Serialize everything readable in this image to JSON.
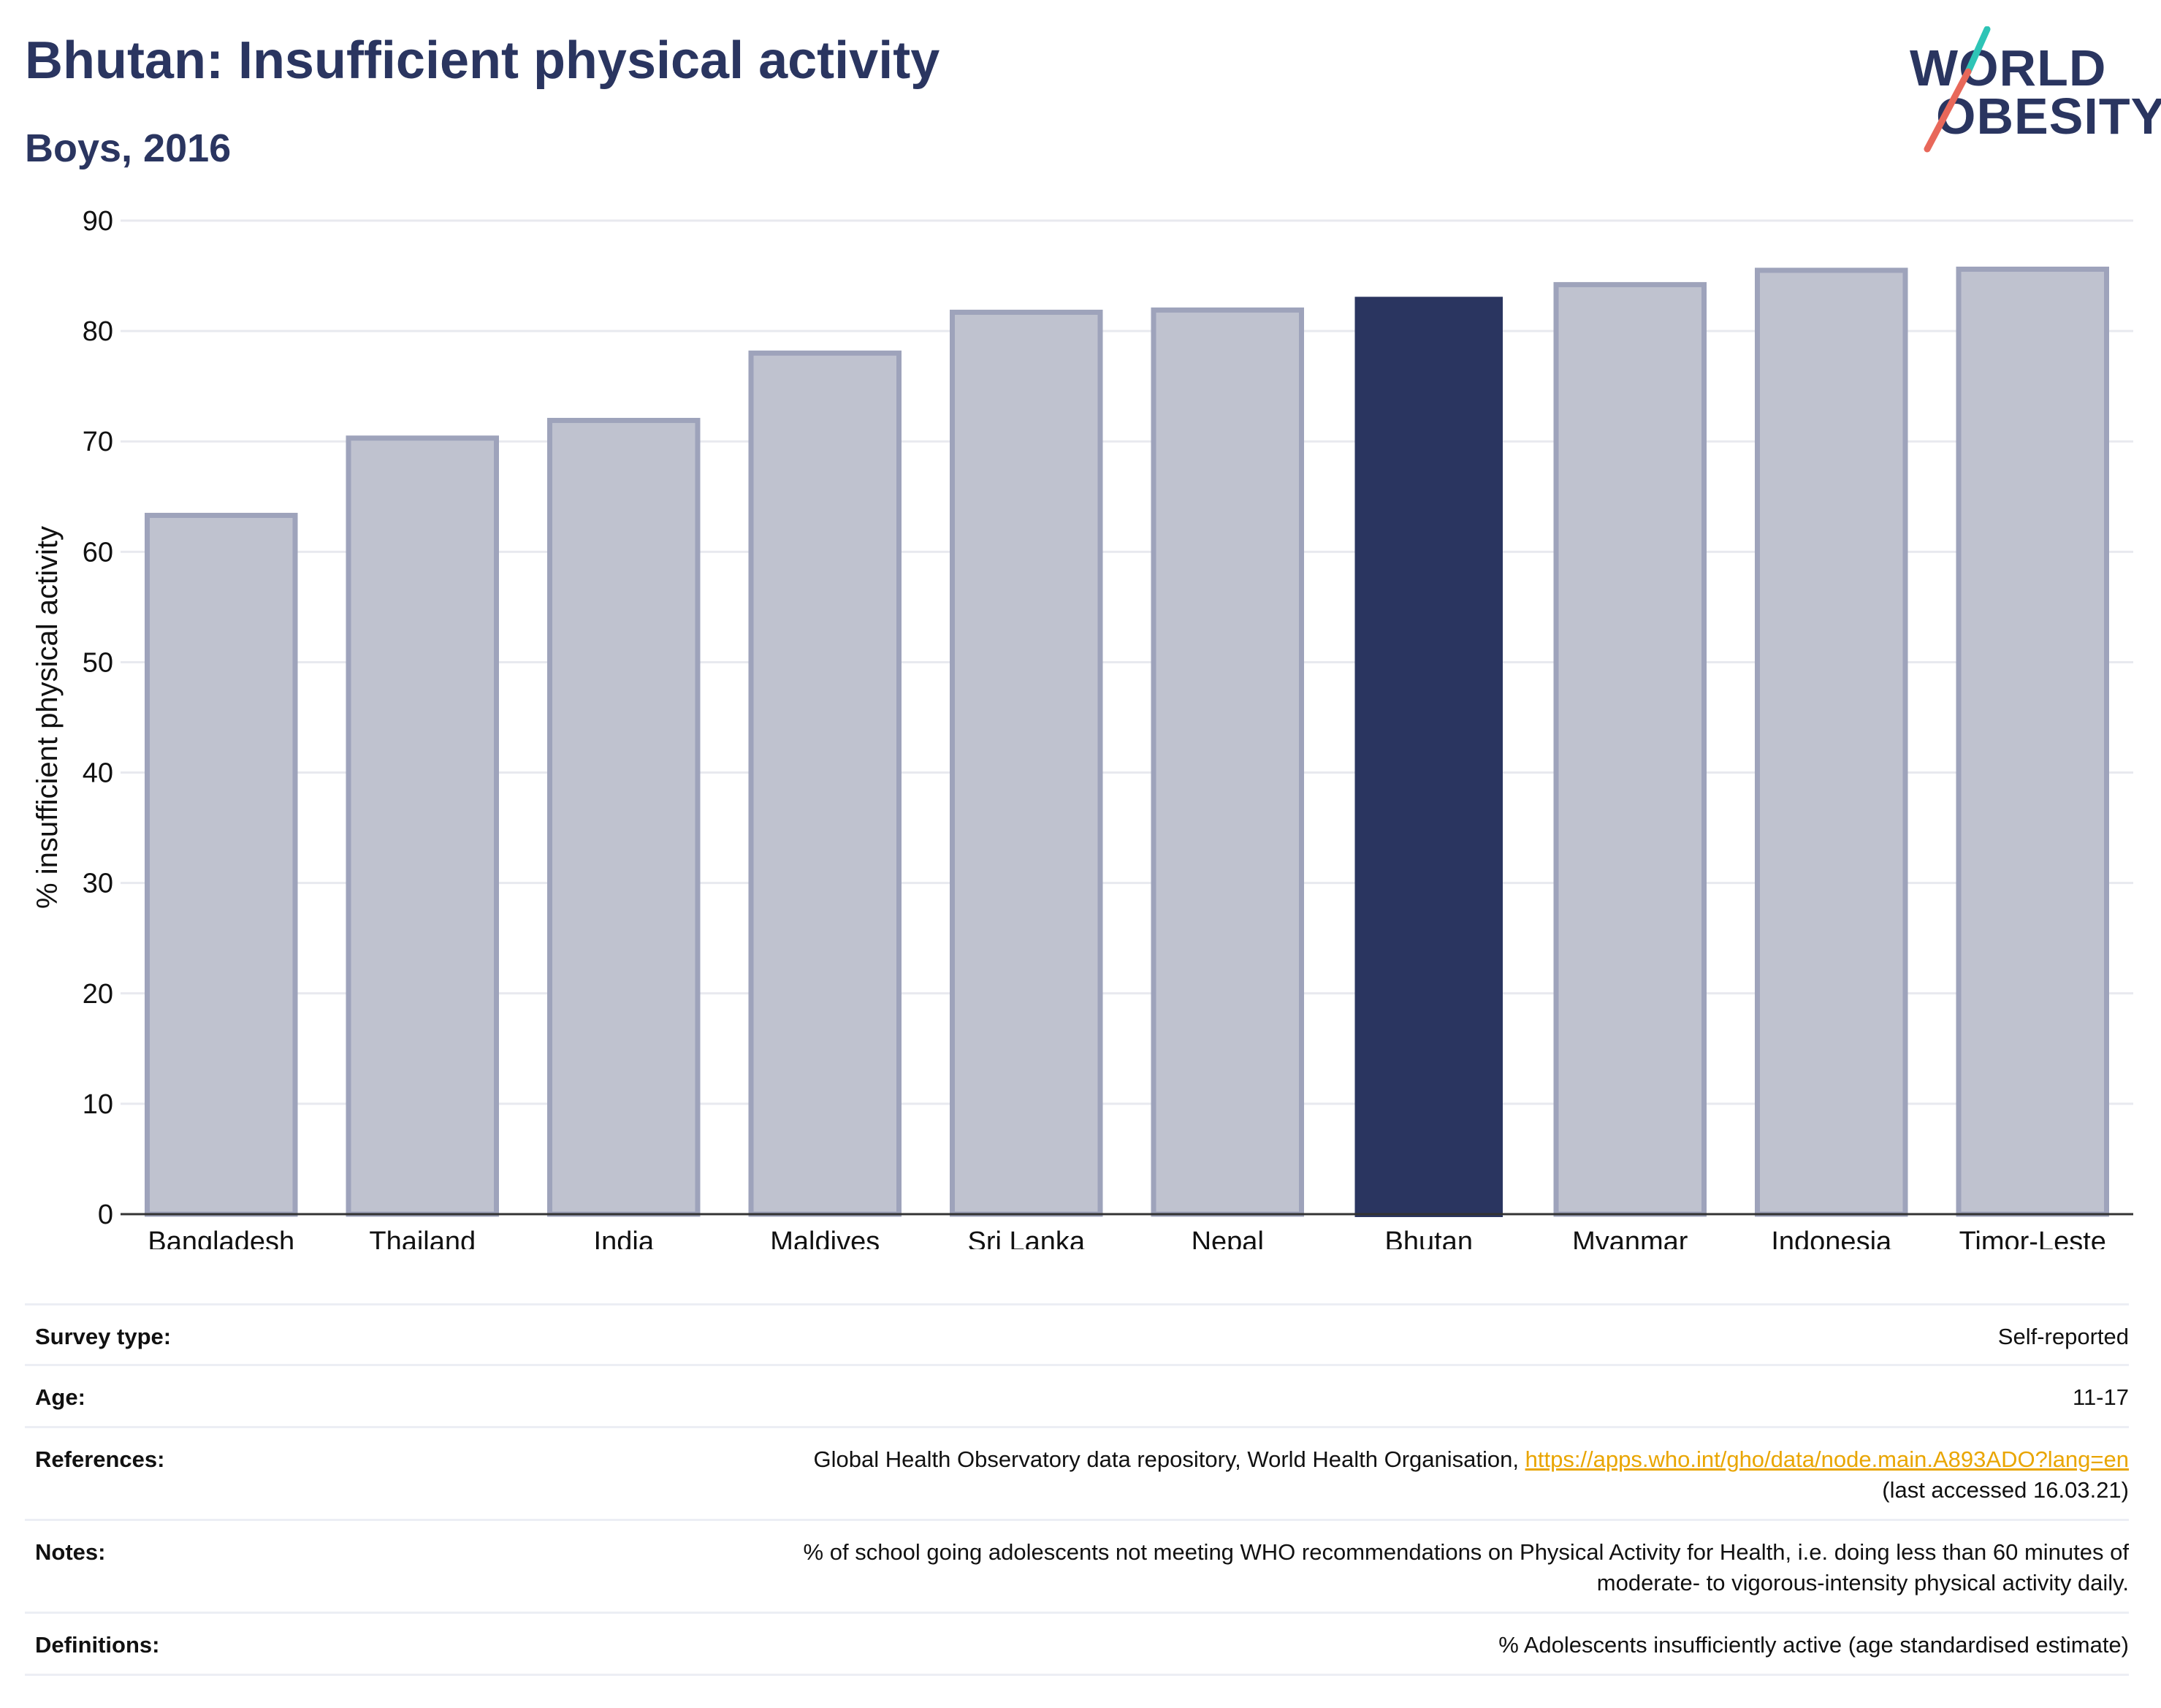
{
  "header": {
    "title": "Bhutan: Insufficient physical activity",
    "subtitle": "Boys, 2016"
  },
  "logo": {
    "line1": "WORLD",
    "line2": "OBESITY",
    "slash_colors": [
      "#2ec4b6",
      "#e8685a"
    ]
  },
  "colors": {
    "highlight": "#2a3560",
    "bar_fill": "#bfc2cf",
    "bar_edge": "#9ea3bb",
    "text_navy": "#2a3560",
    "link": "#e9a500"
  },
  "chart_data": {
    "type": "bar",
    "categories": [
      "Bangladesh",
      "Thailand",
      "India",
      "Maldives",
      "Sri Lanka",
      "Nepal",
      "Bhutan",
      "Myanmar",
      "Indonesia",
      "Timor-Leste"
    ],
    "values": [
      63.3,
      70.3,
      71.9,
      78.0,
      81.7,
      81.9,
      83.1,
      84.2,
      85.5,
      85.6
    ],
    "highlight": "Bhutan",
    "ylabel": "% insufficient physical activity",
    "xlabel": "",
    "ylim": [
      0,
      90
    ],
    "yticks": [
      0,
      10,
      20,
      30,
      40,
      50,
      60,
      70,
      80,
      90
    ],
    "grid": true
  },
  "info": {
    "survey_type_label": "Survey type:",
    "survey_type_value": "Self-reported",
    "age_label": "Age:",
    "age_value": "11-17",
    "references_label": "References:",
    "references_text": "Global Health Observatory data repository, World Health Organisation, ",
    "references_link": "https://apps.who.int/gho/data/node.main.A893ADO?lang=en",
    "references_accessed": "(last accessed 16.03.21)",
    "notes_label": "Notes:",
    "notes_line1": "% of school going adolescents not meeting WHO recommendations on Physical Activity for Health, i.e. doing less than 60 minutes of",
    "notes_line2": "moderate- to vigorous-intensity physical activity daily.",
    "definitions_label": "Definitions:",
    "definitions_value": "% Adolescents insufficiently active (age standardised estimate)"
  }
}
